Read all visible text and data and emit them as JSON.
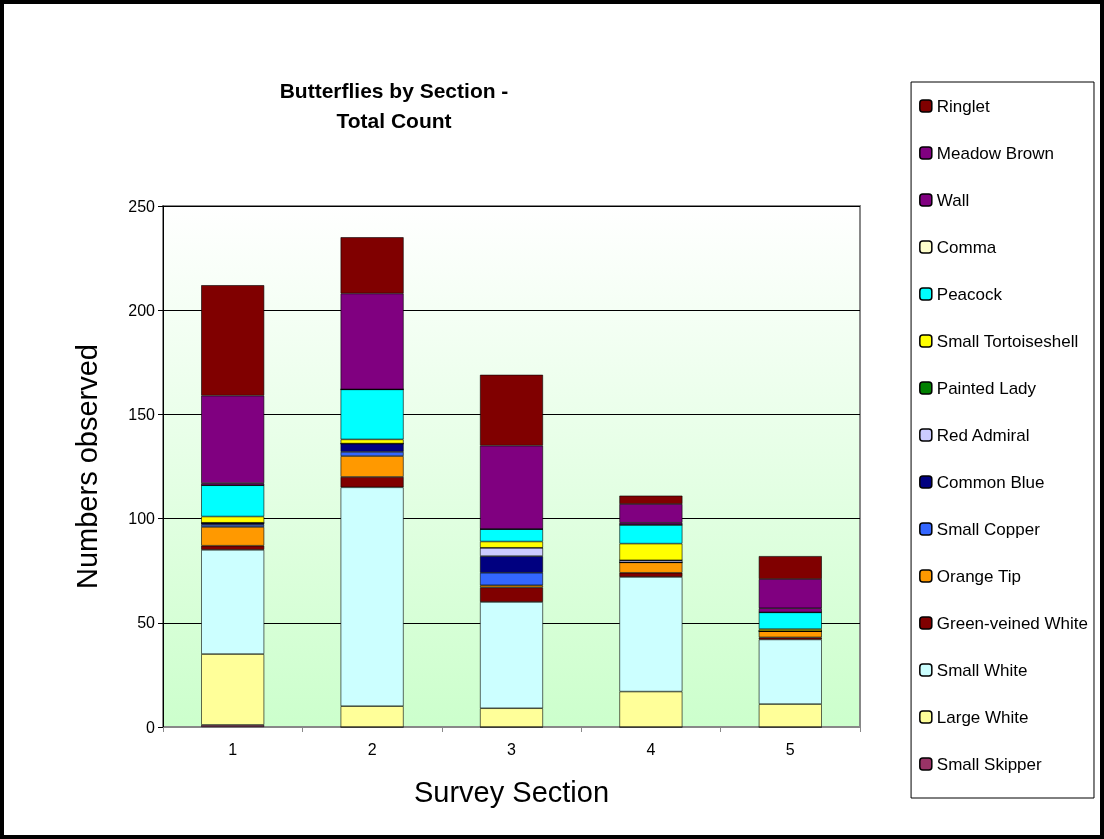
{
  "chart_data": {
    "type": "bar",
    "title": "Butterflies by Section -\nTotal Count",
    "xlabel": "Survey Section",
    "ylabel": "Numbers observed",
    "categories": [
      "1",
      "2",
      "3",
      "4",
      "5"
    ],
    "stacked": true,
    "ylim": [
      0,
      250
    ],
    "yticks": [
      0,
      50,
      100,
      150,
      200,
      250
    ],
    "grid": "y",
    "legend": "right",
    "series": [
      {
        "name": "Small Skipper",
        "color": "#993366",
        "values": [
          1,
          0,
          0,
          0,
          0
        ]
      },
      {
        "name": "Large White",
        "color": "#ffff99",
        "values": [
          34,
          10,
          9,
          17,
          11
        ]
      },
      {
        "name": "Small White",
        "color": "#ccffff",
        "values": [
          50,
          105,
          51,
          55,
          31
        ]
      },
      {
        "name": "Green-veined White",
        "color": "#800000",
        "values": [
          2,
          5,
          7,
          2,
          1
        ]
      },
      {
        "name": "Orange Tip",
        "color": "#ff9900",
        "values": [
          9,
          10,
          1,
          5,
          3
        ]
      },
      {
        "name": "Small Copper",
        "color": "#3366ff",
        "values": [
          1,
          2,
          6,
          0,
          0
        ]
      },
      {
        "name": "Common Blue",
        "color": "#000080",
        "values": [
          1,
          4,
          8,
          0,
          0
        ]
      },
      {
        "name": "Red Admiral",
        "color": "#ccccff",
        "values": [
          0,
          0,
          4,
          1,
          0
        ]
      },
      {
        "name": "Painted Lady",
        "color": "#008000",
        "values": [
          0,
          0,
          0,
          0,
          0
        ]
      },
      {
        "name": "Small Tortoiseshell",
        "color": "#ffff00",
        "values": [
          3,
          2,
          3,
          8,
          1
        ]
      },
      {
        "name": "Peacock",
        "color": "#00ffff",
        "values": [
          15,
          24,
          6,
          9,
          8
        ]
      },
      {
        "name": "Comma",
        "color": "#ffffcc",
        "values": [
          0,
          0,
          0,
          0,
          0
        ]
      },
      {
        "name": "Wall",
        "color": "#800080",
        "values": [
          1,
          0,
          0,
          1,
          2
        ]
      },
      {
        "name": "Meadow Brown",
        "color": "#800080",
        "values": [
          42,
          46,
          40,
          9,
          14
        ]
      },
      {
        "name": "Ringlet",
        "color": "#800000",
        "values": [
          53,
          27,
          34,
          4,
          11
        ]
      }
    ]
  }
}
